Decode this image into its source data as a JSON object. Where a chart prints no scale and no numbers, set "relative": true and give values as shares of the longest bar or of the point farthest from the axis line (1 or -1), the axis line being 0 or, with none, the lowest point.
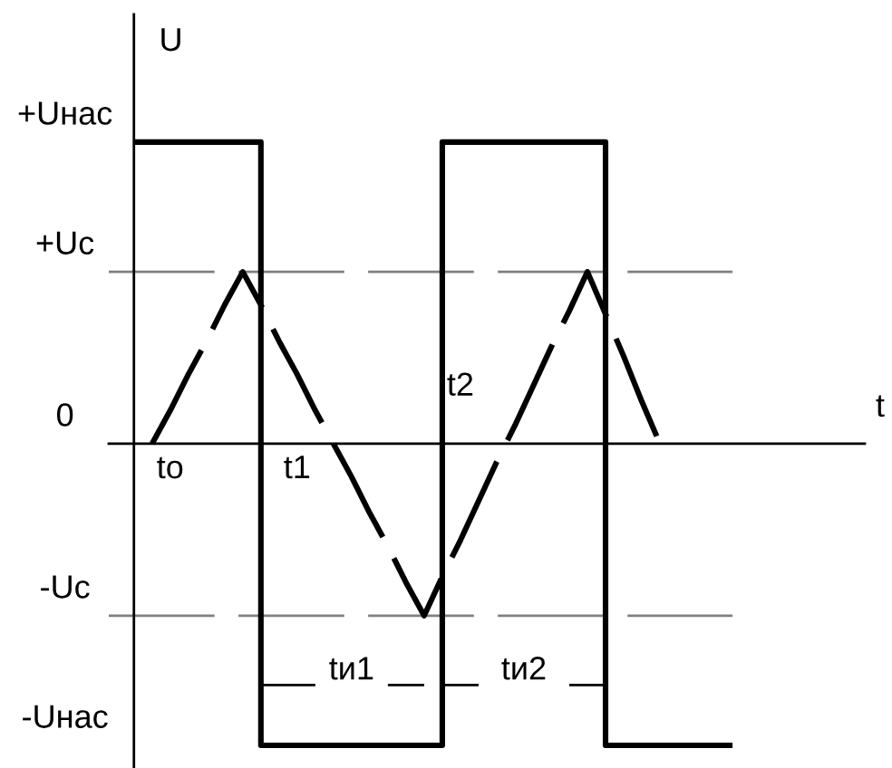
{
  "chart_data": {
    "type": "line",
    "relative": true,
    "xlabel": "t",
    "ylabel": "U",
    "categories": [
      null,
      null,
      "to",
      null,
      null,
      null,
      null,
      null,
      null,
      "t1",
      null,
      null,
      null,
      null,
      null,
      null,
      null,
      null,
      "t2",
      null,
      null,
      null,
      null,
      null,
      null,
      null,
      null,
      null,
      null,
      null,
      null,
      null,
      null,
      null
    ],
    "series": [
      {
        "type": "step",
        "color": "#000000",
        "line_style": "solid",
        "values": [
          1,
          1,
          1,
          1,
          1,
          1,
          1,
          -1,
          -1,
          -1,
          -1,
          -1,
          -1,
          -1,
          -1,
          -1,
          -1,
          1,
          1,
          1,
          1,
          1,
          1,
          1,
          1,
          1,
          -1,
          -1,
          -1,
          -1,
          -1,
          -1,
          -1,
          -1
        ]
      },
      {
        "color": "#000000",
        "line_style": "dashed",
        "values": [
          null,
          0,
          0.11,
          0.23,
          0.34,
          0.46,
          0.57,
          0.46,
          0.34,
          0.23,
          0.11,
          0,
          -0.11,
          -0.23,
          -0.34,
          -0.46,
          -0.57,
          -0.44,
          -0.32,
          -0.19,
          -0.06,
          0.06,
          0.19,
          0.32,
          0.44,
          0.57,
          0.43,
          0.29,
          0.14,
          0,
          null,
          null,
          null,
          null
        ]
      },
      {
        "name": "tи1",
        "color": "#000000",
        "line_style": "solid",
        "values": [
          null,
          null,
          null,
          null,
          null,
          null,
          null,
          -0.8,
          -0.8,
          -0.8,
          -0.8,
          null,
          null,
          null,
          -0.8,
          -0.8,
          -0.8,
          null,
          null,
          null,
          null,
          null,
          null,
          null,
          null,
          null,
          null,
          null,
          null,
          null,
          null,
          null,
          null,
          null
        ]
      },
      {
        "name": "tи2",
        "color": "#000000",
        "line_style": "solid",
        "values": [
          null,
          null,
          null,
          null,
          null,
          null,
          null,
          null,
          null,
          null,
          null,
          null,
          null,
          null,
          null,
          null,
          null,
          -0.8,
          -0.8,
          -0.8,
          null,
          null,
          null,
          null,
          -0.8,
          -0.8,
          -0.8,
          null,
          null,
          null,
          null,
          null,
          null,
          null
        ]
      }
    ],
    "ref_lines": [
      {
        "axis": "y",
        "value": 0.57,
        "label": "+Uc",
        "color": "#808080",
        "line_style": "dashed"
      },
      {
        "axis": "y",
        "value": -0.57,
        "label": "-Uc",
        "color": "#808080",
        "line_style": "dashed"
      }
    ],
    "annotations": [
      "+Uнас",
      "0",
      "-Uнас"
    ]
  }
}
